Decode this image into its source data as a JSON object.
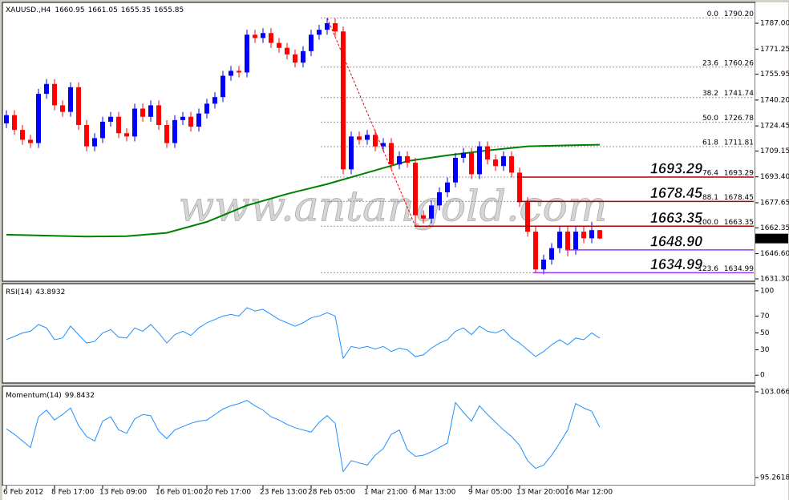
{
  "chart_data": {
    "type": "candlestick",
    "symbol": "XAUUSD.,H4",
    "watermark": "www.antangold.com",
    "bull_color": "#0000ff",
    "bear_color": "#ff0000",
    "categories": [
      "6 Feb 2012",
      null,
      null,
      null,
      null,
      null,
      "8 Feb 17:00",
      null,
      null,
      null,
      null,
      null,
      "13 Feb 09:00",
      null,
      null,
      null,
      null,
      null,
      null,
      "16 Feb 01:00",
      null,
      null,
      null,
      null,
      null,
      "20 Feb 17:00",
      null,
      null,
      null,
      null,
      null,
      null,
      "23 Feb 13:00",
      null,
      null,
      null,
      null,
      null,
      "28 Feb 05:00",
      null,
      null,
      null,
      null,
      null,
      null,
      "1 Mar 21:00",
      null,
      null,
      null,
      null,
      null,
      "6 Mar 13:00",
      null,
      null,
      null,
      null,
      null,
      null,
      "9 Mar 05:00",
      null,
      null,
      null,
      null,
      null,
      "13 Mar 20:00",
      null,
      null,
      null,
      null,
      null,
      "16 Mar 12:00",
      null,
      null,
      null,
      null
    ],
    "ohlc": [
      [
        1726,
        1734,
        1723,
        1731
      ],
      [
        1731,
        1734,
        1719,
        1722
      ],
      [
        1722,
        1725,
        1713,
        1716
      ],
      [
        1716,
        1719,
        1711,
        1714
      ],
      [
        1714,
        1747,
        1711,
        1744
      ],
      [
        1744,
        1753,
        1741,
        1750
      ],
      [
        1750,
        1753,
        1734,
        1737
      ],
      [
        1737,
        1740,
        1730,
        1733
      ],
      [
        1733,
        1751,
        1730,
        1748
      ],
      [
        1748,
        1751,
        1722,
        1725
      ],
      [
        1725,
        1728,
        1709,
        1712
      ],
      [
        1712,
        1720,
        1709,
        1717
      ],
      [
        1717,
        1730,
        1714,
        1727
      ],
      [
        1727,
        1733,
        1724,
        1730
      ],
      [
        1730,
        1733,
        1717,
        1720
      ],
      [
        1720,
        1723,
        1715,
        1718
      ],
      [
        1718,
        1738,
        1715,
        1735
      ],
      [
        1735,
        1738,
        1727,
        1730
      ],
      [
        1730,
        1740,
        1727,
        1737
      ],
      [
        1737,
        1740,
        1722,
        1725
      ],
      [
        1725,
        1728,
        1711,
        1714
      ],
      [
        1714,
        1731,
        1711,
        1728
      ],
      [
        1728,
        1733,
        1725,
        1730
      ],
      [
        1730,
        1733,
        1721,
        1724
      ],
      [
        1724,
        1735,
        1721,
        1732
      ],
      [
        1732,
        1741,
        1729,
        1738
      ],
      [
        1738,
        1745,
        1735,
        1742
      ],
      [
        1742,
        1758,
        1739,
        1755
      ],
      [
        1755,
        1761,
        1752,
        1758
      ],
      [
        1758,
        1761,
        1754,
        1757
      ],
      [
        1757,
        1783,
        1754,
        1780
      ],
      [
        1780,
        1783,
        1775,
        1778
      ],
      [
        1778,
        1784,
        1775,
        1781
      ],
      [
        1781,
        1784,
        1772,
        1775
      ],
      [
        1775,
        1778,
        1769,
        1772
      ],
      [
        1772,
        1775,
        1765,
        1768
      ],
      [
        1768,
        1771,
        1760,
        1763
      ],
      [
        1763,
        1773,
        1760,
        1770
      ],
      [
        1770,
        1783,
        1767,
        1780
      ],
      [
        1780,
        1786,
        1777,
        1783
      ],
      [
        1783,
        1790.2,
        1780,
        1787
      ],
      [
        1787,
        1790,
        1779,
        1782
      ],
      [
        1782,
        1785,
        1695,
        1698
      ],
      [
        1698,
        1721,
        1695,
        1718
      ],
      [
        1718,
        1721,
        1713,
        1716
      ],
      [
        1716,
        1722,
        1713,
        1719
      ],
      [
        1719,
        1722,
        1709,
        1712
      ],
      [
        1712,
        1717,
        1709,
        1714
      ],
      [
        1714,
        1717,
        1698,
        1701
      ],
      [
        1701,
        1709,
        1698,
        1706
      ],
      [
        1706,
        1709,
        1699,
        1702
      ],
      [
        1702,
        1705,
        1663.35,
        1670
      ],
      [
        1670,
        1673,
        1665,
        1668
      ],
      [
        1668,
        1679,
        1665,
        1676
      ],
      [
        1676,
        1687,
        1673,
        1684
      ],
      [
        1684,
        1693,
        1681,
        1690
      ],
      [
        1690,
        1708,
        1687,
        1705
      ],
      [
        1705,
        1711,
        1702,
        1708
      ],
      [
        1708,
        1711,
        1692,
        1695
      ],
      [
        1695,
        1715,
        1692,
        1712
      ],
      [
        1712,
        1715,
        1701,
        1704
      ],
      [
        1704,
        1707,
        1697,
        1700
      ],
      [
        1700,
        1709,
        1697,
        1706
      ],
      [
        1706,
        1709,
        1693,
        1696
      ],
      [
        1696,
        1699,
        1675,
        1678
      ],
      [
        1678,
        1681,
        1657,
        1660
      ],
      [
        1660,
        1663,
        1634.99,
        1637
      ],
      [
        1637,
        1646,
        1634,
        1643
      ],
      [
        1643,
        1653,
        1640,
        1650
      ],
      [
        1650,
        1663,
        1647,
        1660
      ],
      [
        1660,
        1663,
        1645,
        1649
      ],
      [
        1649,
        1663,
        1646,
        1660
      ],
      [
        1660,
        1663,
        1653,
        1656
      ],
      [
        1656,
        1666,
        1653,
        1660.95
      ],
      [
        1660.95,
        1661.05,
        1655.35,
        1655.85
      ]
    ],
    "ylim": [
      1630.3,
      1799.2
    ],
    "yticks": [
      {
        "value": 1787,
        "label": "1787.00"
      },
      1771.25,
      1755.95,
      {
        "value": 1740.2,
        "label": "1740.20"
      },
      1724.45,
      1709.15,
      {
        "value": 1693.4,
        "label": "1693.40"
      },
      1677.65,
      1662.35,
      {
        "value": 1646.6,
        "label": "1646.60"
      },
      {
        "value": 1631.3,
        "label": "1631.30"
      }
    ],
    "ma": {
      "color": "#008000",
      "x": [
        0,
        10,
        15,
        20,
        25,
        30,
        35,
        40,
        45,
        50,
        55,
        60,
        65,
        70,
        74
      ],
      "values": [
        1658.2,
        1657.0,
        1657.3,
        1659.3,
        1666,
        1676,
        1683,
        1689,
        1696,
        1703,
        1706.5,
        1709.5,
        1712,
        1712.6,
        1713
      ]
    },
    "fib": {
      "color": "#ff0000",
      "levels": [
        {
          "ratio": "0.0",
          "price": {
            "value": 1790.2,
            "label": "1790.20"
          }
        },
        {
          "ratio": "23.6",
          "price": 1760.26
        },
        {
          "ratio": "38.2",
          "price": 1741.74
        },
        {
          "ratio": "50.0",
          "price": 1726.78
        },
        {
          "ratio": "61.8",
          "price": 1711.81
        },
        {
          "ratio": "76.4",
          "price": 1693.29
        },
        {
          "ratio": "88.1",
          "price": 1678.45
        },
        {
          "ratio": "100.0",
          "price": 1663.35
        },
        {
          "ratio": "123.6",
          "price": 1634.99
        }
      ]
    },
    "levels": [
      {
        "value": 1693.29,
        "color": "#b00000"
      },
      {
        "value": 1678.45,
        "color": "#b00000"
      },
      {
        "value": 1663.35,
        "color": "#b00000"
      },
      {
        "value": {
          "value": 1648.9,
          "label": "1648.90"
        },
        "color": "#9933ff"
      },
      {
        "value": 1634.99,
        "color": "#9933ff"
      }
    ],
    "indicators": [
      {
        "type": "line",
        "label": "RSI(14)",
        "color": "#1e90ff",
        "ylim": [
          -7.4,
          106.5
        ],
        "yticks": [
          100,
          70,
          50,
          30,
          0
        ],
        "values": [
          42,
          46,
          50,
          52,
          60,
          56,
          42,
          44,
          58,
          48,
          38,
          40,
          50,
          54,
          45,
          44,
          56,
          52,
          60,
          50,
          38,
          48,
          52,
          47,
          56,
          62,
          66,
          70,
          72,
          70,
          80,
          76,
          78,
          72,
          66,
          62,
          58,
          62,
          68,
          70,
          74,
          70,
          20,
          34,
          32,
          34,
          31,
          34,
          28,
          32,
          30,
          22,
          24,
          32,
          38,
          42,
          52,
          56,
          48,
          58,
          52,
          50,
          54,
          44,
          38,
          30,
          22,
          28,
          36,
          42,
          36,
          44,
          42,
          50,
          43.8932
        ]
      },
      {
        "type": "line",
        "label": "Momentum(14)",
        "color": "#1e90ff",
        "ylim": [
          94.68,
          103.36
        ],
        "yticks": [
          103.066,
          95.2618
        ],
        "values": [
          99.7,
          99.2,
          98.6,
          98.0,
          100.8,
          101.4,
          100.5,
          101.0,
          101.6,
          100.0,
          99.0,
          98.6,
          100.4,
          100.8,
          99.6,
          99.3,
          100.6,
          101.0,
          100.9,
          99.5,
          98.8,
          99.6,
          99.9,
          100.2,
          100.4,
          100.5,
          101.0,
          101.5,
          101.8,
          102.0,
          102.3,
          101.8,
          101.4,
          100.8,
          100.5,
          100.1,
          99.8,
          99.6,
          99.4,
          100.3,
          100.9,
          100.2,
          95.8,
          96.8,
          96.6,
          96.4,
          97.3,
          97.9,
          99.2,
          99.6,
          97.8,
          97.2,
          97.3,
          97.6,
          98.0,
          98.4,
          102.1,
          101.2,
          100.4,
          101.8,
          101.0,
          100.3,
          99.6,
          99.0,
          98.2,
          96.8,
          96.1,
          96.4,
          97.3,
          98.4,
          99.6,
          102.0,
          101.6,
          101.3,
          99.8432
        ]
      }
    ]
  }
}
